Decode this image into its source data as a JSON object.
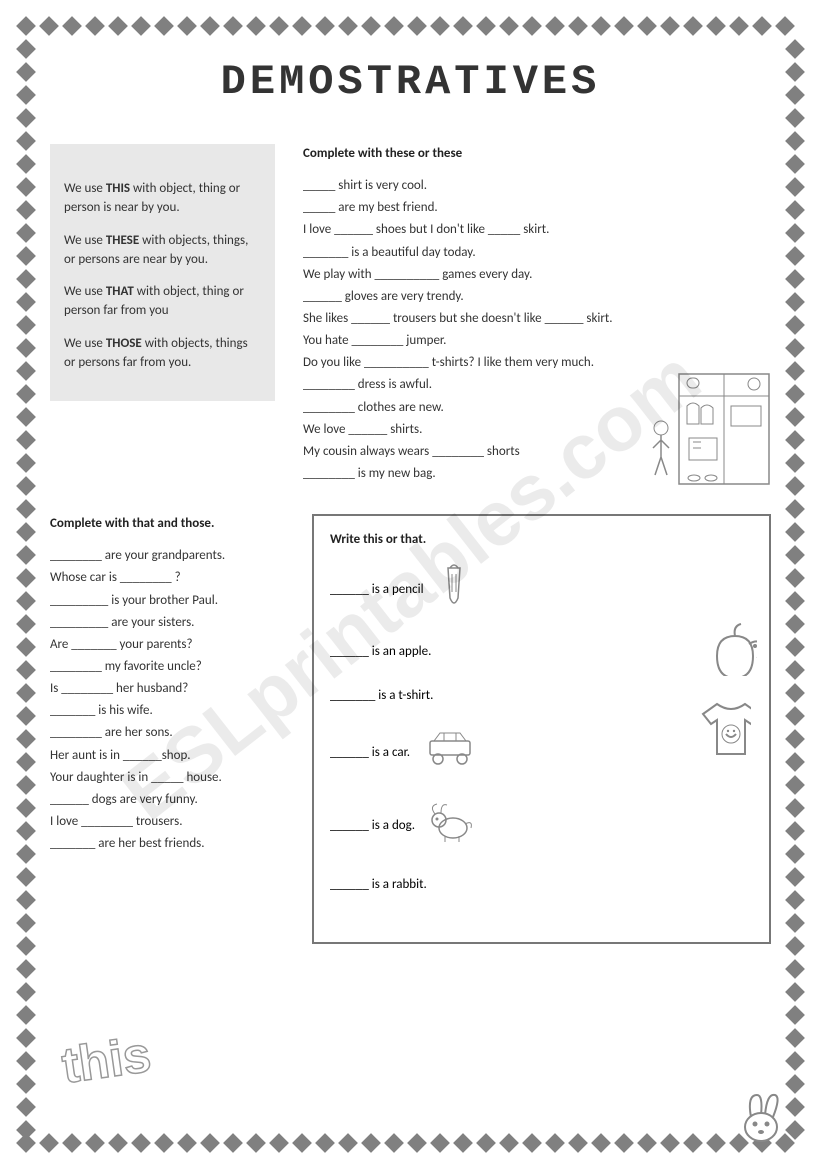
{
  "title": "DEMOSTRATIVES",
  "watermark": "ESLprintables.com",
  "rules": {
    "p1_a": "We use ",
    "p1_b": "THIS",
    "p1_c": "  with object, thing or person is near by you.",
    "p2_a": "We use  ",
    "p2_b": "THESE",
    "p2_c": "  with objects, things, or persons are near by you.",
    "p3_a": "We use ",
    "p3_b": "THAT",
    "p3_c": "  with object, thing or person far from you",
    "p4_a": "We use ",
    "p4_b": "THOSE",
    "p4_c": " with objects, things or persons far from you."
  },
  "ex1": {
    "title": "Complete with these or these",
    "lines": [
      "_____ shirt  is very cool.",
      "_____ are my best friend.",
      "I love ______ shoes but I don't like _____ skirt.",
      "_______ is a beautiful day today.",
      "We play with __________ games every day.",
      "______ gloves  are very trendy.",
      "She likes ______ trousers but she doesn't like ______ skirt.",
      "You  hate ________  jumper.",
      "Do you like __________ t-shirts? I like them very much.",
      "________ dress is awful.",
      "________ clothes are new.",
      " We love ______ shirts.",
      " My  cousin always wears ________ shorts",
      "________ is my new bag."
    ]
  },
  "ex2": {
    "title": "Complete with that and those.",
    "lines": [
      "________ are your grandparents.",
      "Whose car is ________ ?",
      "_________ is your brother Paul.",
      "_________ are your sisters.",
      "Are _______ your parents?",
      "________  my favorite uncle?",
      "Is ________ her husband?",
      "_______ is his wife.",
      "________ are her sons.",
      "Her  aunt is in ______shop.",
      "Your daughter is in _____ house.",
      "______ dogs are very funny.",
      "I love ________ trousers.",
      "_______ are her best friends."
    ]
  },
  "ex3": {
    "title": "Write this or that.",
    "items": [
      "______ is a pencil",
      "______ is an apple.",
      "_______ is a t-shirt.",
      "______ is a car.",
      "______ is a dog.",
      "______ is a rabbit."
    ]
  },
  "decor_text": "this",
  "colors": {
    "diamond": "#808080",
    "rules_bg": "#e8e8e8",
    "border": "#777777",
    "text": "#333333"
  }
}
